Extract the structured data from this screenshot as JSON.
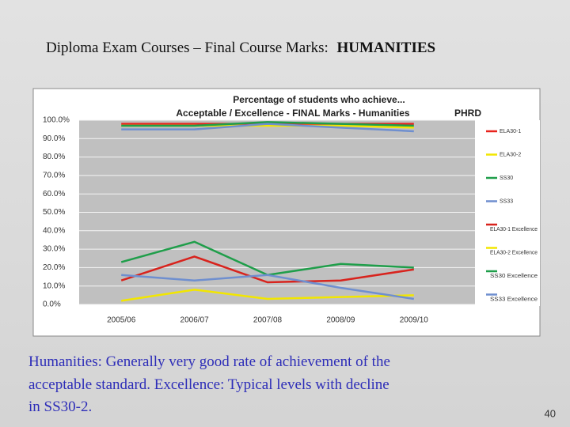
{
  "slide_title": "Diploma Exam Courses – Final Course Marks:",
  "slide_title_bold": "HUMANITIES",
  "chart_data": {
    "type": "line",
    "title": [
      "Percentage of students who achieve...",
      "Acceptable / Excellence - FINAL Marks - Humanities"
    ],
    "tag": "PHRD",
    "categories": [
      "2005/06",
      "2006/07",
      "2007/08",
      "2008/09",
      "2009/10"
    ],
    "ylim": [
      0,
      100
    ],
    "yticks": [
      {
        "value": 0,
        "label": "0.0%"
      },
      {
        "value": 10,
        "label": "10.0%"
      },
      {
        "value": 20,
        "label": "20.0%"
      },
      {
        "value": 30,
        "label": "30.0%"
      },
      {
        "value": 40,
        "label": "40.0%"
      },
      {
        "value": 50,
        "label": "50.0%"
      },
      {
        "value": 60,
        "label": "60.0%"
      },
      {
        "value": 70,
        "label": "70.0%"
      },
      {
        "value": 80,
        "label": "80.0%"
      },
      {
        "value": 90,
        "label": "90.0%"
      },
      {
        "value": 100,
        "label": "100.0%"
      }
    ],
    "grid": true,
    "series": [
      {
        "name": "ELA30-1",
        "color": "#e8231d",
        "values": [
          98,
          98,
          98,
          98,
          98
        ]
      },
      {
        "name": "ELA30-2",
        "color": "#f2e600",
        "values": [
          97,
          97,
          97,
          97,
          96
        ]
      },
      {
        "name": "SS30",
        "color": "#1f9e4a",
        "values": [
          97,
          97,
          99,
          98,
          97
        ]
      },
      {
        "name": "SS33",
        "color": "#6f8fcf",
        "values": [
          95,
          95,
          98,
          96,
          94
        ]
      },
      {
        "name": "ELA30-1 Excellence",
        "color": "#d8231d",
        "values": [
          13,
          26,
          12,
          13,
          19
        ]
      },
      {
        "name": "ELA30-2 Excellence",
        "color": "#f2e600",
        "values": [
          2,
          8,
          3,
          4,
          5
        ]
      },
      {
        "name": "SS30 Excellence",
        "color": "#1f9e4a",
        "values": [
          23,
          34,
          16,
          22,
          20
        ]
      },
      {
        "name": "SS33 Excellence",
        "color": "#6f8fcf",
        "values": [
          16,
          13,
          16,
          9,
          3
        ]
      }
    ]
  },
  "body_text": [
    "Humanities: Generally very good rate of achievement of the",
    "acceptable standard. Excellence: Typical levels with decline",
    "in SS30-2."
  ],
  "page_number": "40"
}
